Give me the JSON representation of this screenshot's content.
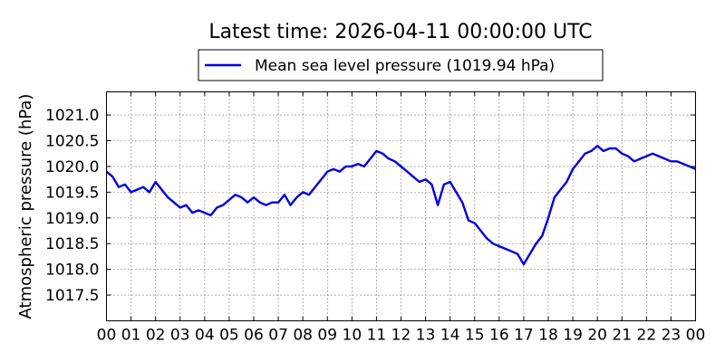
{
  "chart_data": {
    "type": "line",
    "title": "Latest time: 2026-04-11 00:00:00 UTC",
    "ylabel": "Atmospheric pressure (hPa)",
    "xlabel": "",
    "xlim": [
      0,
      24
    ],
    "ylim": [
      1017.0,
      1021.45
    ],
    "x_ticks": [
      "00",
      "01",
      "02",
      "03",
      "04",
      "05",
      "06",
      "07",
      "08",
      "09",
      "10",
      "11",
      "12",
      "13",
      "14",
      "15",
      "16",
      "17",
      "18",
      "19",
      "20",
      "21",
      "22",
      "23",
      "00"
    ],
    "y_ticks": [
      1017.5,
      1018.0,
      1018.5,
      1019.0,
      1019.5,
      1020.0,
      1020.5,
      1021.0
    ],
    "y_tick_labels": [
      "1017.5",
      "1018.0",
      "1018.5",
      "1019.0",
      "1019.5",
      "1020.0",
      "1020.5",
      "1021.0"
    ],
    "grid": true,
    "legend_position": "top-center",
    "series": [
      {
        "name": "Mean sea level pressure (1019.94 hPa)",
        "color": "#0000dd",
        "x": [
          0,
          0.25,
          0.5,
          0.75,
          1,
          1.25,
          1.5,
          1.75,
          2,
          2.25,
          2.5,
          2.75,
          3,
          3.25,
          3.5,
          3.75,
          4,
          4.25,
          4.5,
          4.75,
          5,
          5.25,
          5.5,
          5.75,
          6,
          6.25,
          6.5,
          6.75,
          7,
          7.25,
          7.5,
          7.75,
          8,
          8.25,
          8.5,
          8.75,
          9,
          9.25,
          9.5,
          9.75,
          10,
          10.25,
          10.5,
          10.75,
          11,
          11.25,
          11.5,
          11.75,
          12,
          12.25,
          12.5,
          12.75,
          13,
          13.25,
          13.5,
          13.75,
          14,
          14.25,
          14.5,
          14.75,
          15,
          15.25,
          15.5,
          15.75,
          16,
          16.25,
          16.5,
          16.75,
          17,
          17.25,
          17.5,
          17.75,
          18,
          18.25,
          18.5,
          18.75,
          19,
          19.25,
          19.5,
          19.75,
          20,
          20.25,
          20.5,
          20.75,
          21,
          21.25,
          21.5,
          21.75,
          22,
          22.25,
          22.5,
          22.75,
          23,
          23.25,
          23.5,
          23.75,
          24
        ],
        "values": [
          1019.9,
          1019.8,
          1019.6,
          1019.65,
          1019.5,
          1019.55,
          1019.6,
          1019.5,
          1019.7,
          1019.55,
          1019.4,
          1019.3,
          1019.2,
          1019.25,
          1019.1,
          1019.15,
          1019.1,
          1019.05,
          1019.2,
          1019.25,
          1019.35,
          1019.45,
          1019.4,
          1019.3,
          1019.4,
          1019.3,
          1019.25,
          1019.3,
          1019.3,
          1019.45,
          1019.25,
          1019.4,
          1019.5,
          1019.45,
          1019.6,
          1019.75,
          1019.9,
          1019.95,
          1019.9,
          1020.0,
          1020.0,
          1020.05,
          1020.0,
          1020.15,
          1020.3,
          1020.25,
          1020.15,
          1020.1,
          1020.0,
          1019.9,
          1019.8,
          1019.7,
          1019.75,
          1019.65,
          1019.25,
          1019.65,
          1019.7,
          1019.5,
          1019.3,
          1018.95,
          1018.9,
          1018.75,
          1018.6,
          1018.5,
          1018.45,
          1018.4,
          1018.35,
          1018.3,
          1018.1,
          1018.3,
          1018.5,
          1018.65,
          1019.0,
          1019.4,
          1019.55,
          1019.7,
          1019.95,
          1020.1,
          1020.25,
          1020.3,
          1020.4,
          1020.3,
          1020.35,
          1020.35,
          1020.25,
          1020.2,
          1020.1,
          1020.15,
          1020.2,
          1020.25,
          1020.2,
          1020.15,
          1020.1,
          1020.1,
          1020.05,
          1020.0,
          1019.95
        ]
      }
    ]
  }
}
